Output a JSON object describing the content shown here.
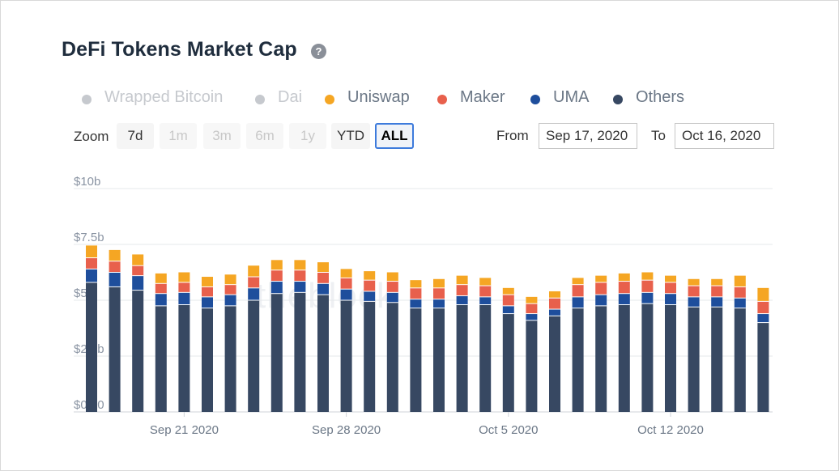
{
  "title": "DeFi Tokens Market Cap",
  "help_icon": "question-circle-icon",
  "legend": [
    {
      "name": "Wrapped Bitcoin",
      "color": "#c6c9ce",
      "visible": false
    },
    {
      "name": "Dai",
      "color": "#c6c9ce",
      "visible": false
    },
    {
      "name": "Uniswap",
      "color": "#f5a623",
      "visible": true
    },
    {
      "name": "Maker",
      "color": "#e8604c",
      "visible": true
    },
    {
      "name": "UMA",
      "color": "#1e4e9c",
      "visible": true
    },
    {
      "name": "Others",
      "color": "#374862",
      "visible": true
    }
  ],
  "zoom": {
    "label": "Zoom",
    "buttons": [
      {
        "label": "7d",
        "state": "enabled"
      },
      {
        "label": "1m",
        "state": "disabled"
      },
      {
        "label": "3m",
        "state": "disabled"
      },
      {
        "label": "6m",
        "state": "disabled"
      },
      {
        "label": "1y",
        "state": "disabled"
      },
      {
        "label": "YTD",
        "state": "enabled"
      },
      {
        "label": "ALL",
        "state": "active"
      }
    ]
  },
  "range": {
    "from_label": "From",
    "from_value": "Sep 17, 2020",
    "to_label": "To",
    "to_value": "Oct 16, 2020"
  },
  "watermark": "theblock",
  "chart_data": {
    "type": "bar",
    "stacked": true,
    "x": [
      "2020-09-17",
      "2020-09-18",
      "2020-09-19",
      "2020-09-20",
      "2020-09-21",
      "2020-09-22",
      "2020-09-23",
      "2020-09-24",
      "2020-09-25",
      "2020-09-26",
      "2020-09-27",
      "2020-09-28",
      "2020-09-29",
      "2020-09-30",
      "2020-10-01",
      "2020-10-02",
      "2020-10-03",
      "2020-10-04",
      "2020-10-05",
      "2020-10-06",
      "2020-10-07",
      "2020-10-08",
      "2020-10-09",
      "2020-10-10",
      "2020-10-11",
      "2020-10-12",
      "2020-10-13",
      "2020-10-14",
      "2020-10-15",
      "2020-10-16"
    ],
    "x_ticks": [
      {
        "label": "Sep 21 2020",
        "date": "2020-09-21"
      },
      {
        "label": "Sep 28 2020",
        "date": "2020-09-28"
      },
      {
        "label": "Oct 5 2020",
        "date": "2020-10-05"
      },
      {
        "label": "Oct 12 2020",
        "date": "2020-10-12"
      }
    ],
    "series": [
      {
        "name": "Others",
        "color": "#374862",
        "values": [
          5.8,
          5.6,
          5.45,
          4.75,
          4.8,
          4.65,
          4.75,
          5.0,
          5.3,
          5.35,
          5.25,
          5.0,
          4.95,
          4.9,
          4.65,
          4.65,
          4.8,
          4.8,
          4.4,
          4.1,
          4.3,
          4.65,
          4.75,
          4.8,
          4.85,
          4.8,
          4.7,
          4.7,
          4.65,
          4.0
        ]
      },
      {
        "name": "UMA",
        "color": "#1e4e9c",
        "values": [
          0.6,
          0.65,
          0.65,
          0.55,
          0.55,
          0.5,
          0.5,
          0.55,
          0.55,
          0.5,
          0.5,
          0.5,
          0.45,
          0.45,
          0.4,
          0.4,
          0.4,
          0.35,
          0.35,
          0.3,
          0.3,
          0.5,
          0.5,
          0.5,
          0.5,
          0.5,
          0.45,
          0.45,
          0.45,
          0.4
        ]
      },
      {
        "name": "Maker",
        "color": "#e8604c",
        "values": [
          0.5,
          0.5,
          0.45,
          0.45,
          0.45,
          0.45,
          0.45,
          0.5,
          0.5,
          0.5,
          0.5,
          0.5,
          0.5,
          0.5,
          0.5,
          0.5,
          0.5,
          0.5,
          0.5,
          0.45,
          0.5,
          0.55,
          0.55,
          0.55,
          0.55,
          0.5,
          0.5,
          0.5,
          0.5,
          0.55
        ]
      },
      {
        "name": "Uniswap",
        "color": "#f5a623",
        "values": [
          0.55,
          0.5,
          0.5,
          0.45,
          0.45,
          0.45,
          0.45,
          0.5,
          0.45,
          0.45,
          0.45,
          0.4,
          0.4,
          0.4,
          0.35,
          0.4,
          0.4,
          0.35,
          0.3,
          0.3,
          0.3,
          0.3,
          0.3,
          0.35,
          0.35,
          0.3,
          0.3,
          0.3,
          0.5,
          0.6
        ]
      }
    ],
    "y_ticks": [
      "$0.00",
      "$2.5b",
      "$5b",
      "$7.5b",
      "$10b"
    ],
    "ylim": [
      0,
      10
    ],
    "ylabel": "",
    "xlabel": "",
    "unit": "billion USD",
    "grid": true
  }
}
